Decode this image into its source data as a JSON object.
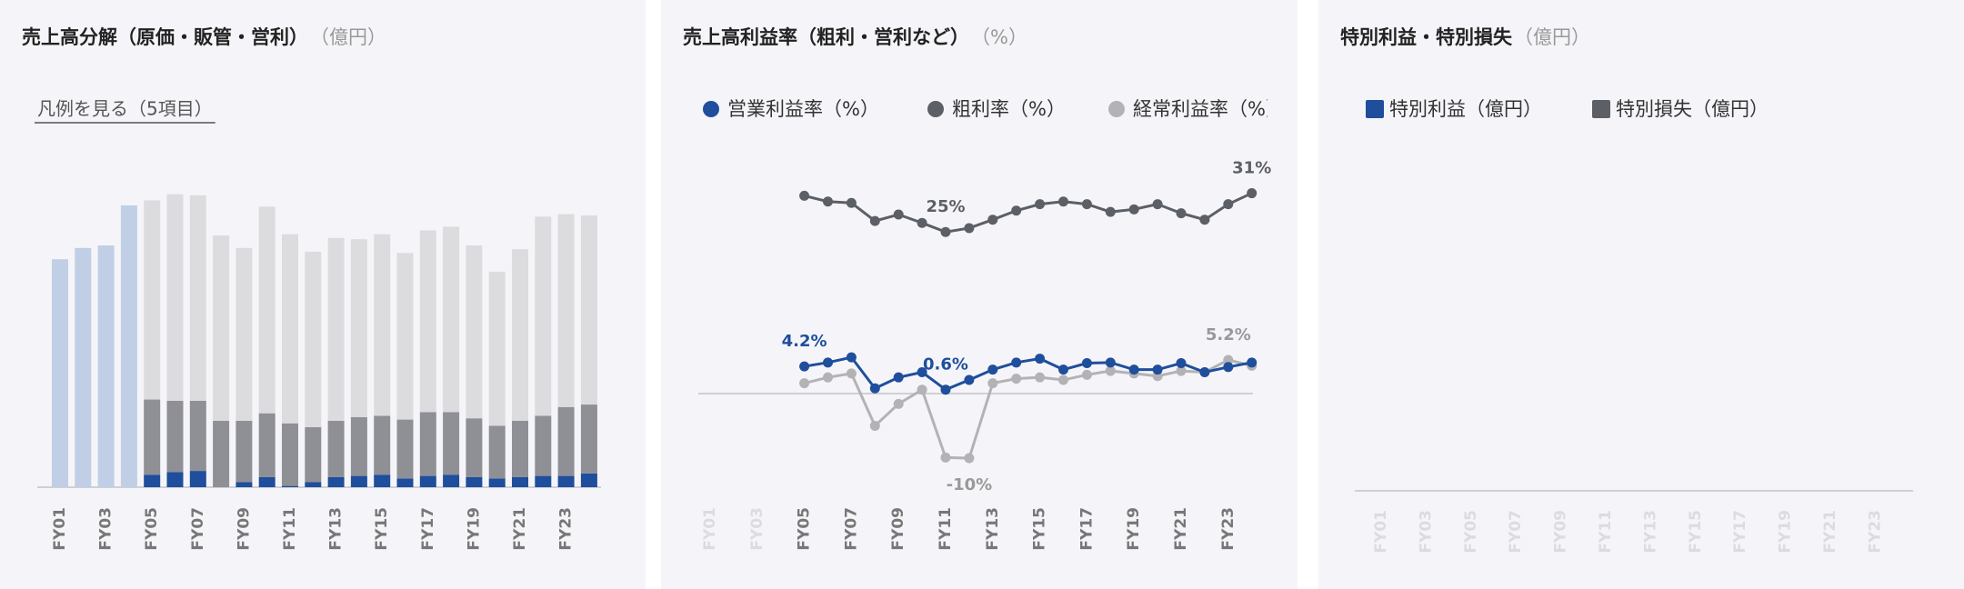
{
  "chart_data": [
    {
      "type": "bar",
      "stacked": true,
      "title": "売上高分解（原価・販管・営利）",
      "unit": "（億円）",
      "legend_toggle": "凡例を見る（5項目）",
      "categories": [
        "FY01",
        null,
        "FY03",
        null,
        "FY05",
        null,
        "FY07",
        null,
        "FY09",
        null,
        "FY11",
        null,
        "FY13",
        null,
        "FY15",
        null,
        "FY17",
        null,
        "FY19",
        null,
        "FY21",
        null,
        "FY23",
        null
      ],
      "ylim": [
        0,
        250
      ],
      "series": [
        {
          "color": "#c0cfe6",
          "values": [
            182,
            191,
            193,
            225,
            null,
            null,
            null,
            null,
            null,
            null,
            null,
            null,
            null,
            null,
            null,
            null,
            null,
            null,
            null,
            null,
            null,
            null,
            null,
            null
          ]
        },
        {
          "color": "#1f4e9c",
          "values": [
            null,
            null,
            null,
            null,
            10,
            12,
            13,
            0,
            4,
            8,
            1,
            4,
            8,
            9,
            10,
            7,
            9,
            10,
            8,
            7,
            8,
            9,
            9,
            11
          ]
        },
        {
          "color": "#8e9096",
          "values": [
            null,
            null,
            null,
            null,
            60,
            57,
            56,
            53,
            49,
            51,
            50,
            44,
            45,
            47,
            47,
            47,
            51,
            50,
            47,
            42,
            45,
            48,
            55,
            55
          ]
        },
        {
          "color": "#dcdcdf",
          "values": [
            null,
            null,
            null,
            null,
            159,
            165,
            164,
            148,
            138,
            165,
            151,
            140,
            146,
            142,
            145,
            133,
            145,
            148,
            138,
            123,
            137,
            159,
            154,
            151
          ]
        }
      ]
    },
    {
      "type": "line",
      "title": "売上高利益率（粗利・営利など）",
      "unit": "（%）",
      "categories": [
        "FY01",
        null,
        "FY03",
        null,
        "FY05",
        null,
        "FY07",
        null,
        "FY09",
        null,
        "FY11",
        null,
        "FY13",
        null,
        "FY15",
        null,
        "FY17",
        null,
        "FY19",
        null,
        "FY21",
        null,
        "FY23",
        null
      ],
      "ylim": [
        -14,
        36
      ],
      "series": [
        {
          "name": "営業利益率（%）",
          "color": "#1f4e9c",
          "values": [
            null,
            null,
            null,
            null,
            4.2,
            4.8,
            5.6,
            0.8,
            2.5,
            3.3,
            0.6,
            2.1,
            3.7,
            4.8,
            5.4,
            3.7,
            4.7,
            4.8,
            3.7,
            3.7,
            4.7,
            3.3,
            4.1,
            4.8
          ],
          "value_labels": [
            null,
            null,
            null,
            null,
            "4.2%",
            null,
            null,
            null,
            null,
            null,
            "0.6%",
            null,
            null,
            null,
            null,
            null,
            null,
            null,
            null,
            null,
            null,
            null,
            null,
            null
          ]
        },
        {
          "name": "粗利率（%）",
          "color": "#5c5f66",
          "values": [
            null,
            null,
            null,
            null,
            30.6,
            29.7,
            29.5,
            26.7,
            27.7,
            26.4,
            25,
            25.6,
            26.9,
            28.3,
            29.3,
            29.7,
            29.3,
            28.1,
            28.5,
            29.3,
            27.9,
            26.9,
            29.3,
            31
          ],
          "value_labels": [
            null,
            null,
            null,
            null,
            null,
            null,
            null,
            null,
            null,
            null,
            "25%",
            null,
            null,
            null,
            null,
            null,
            null,
            null,
            null,
            null,
            null,
            null,
            null,
            "31%"
          ]
        },
        {
          "name": "経常利益率（%）",
          "color": "#b3b3b6",
          "values": [
            null,
            null,
            null,
            null,
            1.6,
            2.5,
            3.1,
            -5.0,
            -1.6,
            0.6,
            -9.9,
            -10,
            1.6,
            2.3,
            2.5,
            2.1,
            2.9,
            3.5,
            3.1,
            2.7,
            3.5,
            3.3,
            5.2,
            4.3
          ],
          "value_labels": [
            null,
            null,
            null,
            null,
            null,
            null,
            null,
            null,
            null,
            null,
            null,
            "-10%",
            null,
            null,
            null,
            null,
            null,
            null,
            null,
            null,
            null,
            null,
            "5.2%",
            null
          ]
        }
      ]
    },
    {
      "type": "bar",
      "title": "特別利益・特別損失",
      "unit": "（億円）",
      "categories": [
        "FY01",
        null,
        "FY03",
        null,
        "FY05",
        null,
        "FY07",
        null,
        "FY09",
        null,
        "FY11",
        null,
        "FY13",
        null,
        "FY15",
        null,
        "FY17",
        null,
        "FY19",
        null,
        "FY21",
        null,
        "FY23",
        null
      ],
      "series": [
        {
          "name": "特別利益（億円）",
          "color": "#1f4e9c",
          "values": [
            null,
            null,
            null,
            null,
            null,
            null,
            null,
            null,
            null,
            null,
            null,
            null,
            null,
            null,
            null,
            null,
            null,
            null,
            null,
            null,
            null,
            null,
            null,
            null
          ]
        },
        {
          "name": "特別損失（億円）",
          "color": "#5c5f66",
          "values": [
            null,
            null,
            null,
            null,
            null,
            null,
            null,
            null,
            null,
            null,
            null,
            null,
            null,
            null,
            null,
            null,
            null,
            null,
            null,
            null,
            null,
            null,
            null,
            null
          ]
        }
      ]
    }
  ]
}
